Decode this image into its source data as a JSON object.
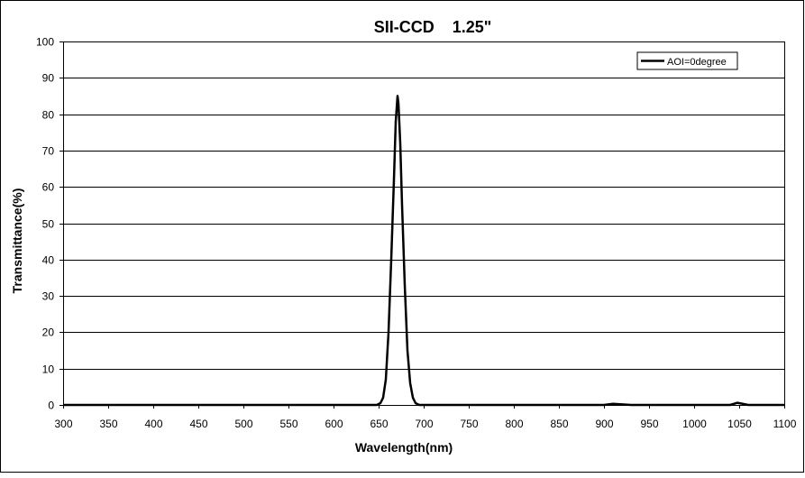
{
  "chart_data": {
    "type": "line",
    "title": "SII-CCD    1.25\"",
    "xlabel": "Wavelength(nm)",
    "ylabel": "Transmittance(%)",
    "xlim": [
      300,
      1100
    ],
    "ylim": [
      0,
      100
    ],
    "x_ticks": [
      "300",
      "350",
      "400",
      "450",
      "500",
      "550",
      "600",
      "650",
      "700",
      "750",
      "800",
      "850",
      "900",
      "950",
      "1000",
      "1050",
      "1100"
    ],
    "y_ticks": [
      "0",
      "10",
      "20",
      "30",
      "40",
      "50",
      "60",
      "70",
      "80",
      "90",
      "100"
    ],
    "grid": "horizontal",
    "legend_position": "top-right",
    "series": [
      {
        "name": "AOI=0degree",
        "color": "#000000",
        "x": [
          300,
          600,
          648,
          652,
          655,
          658,
          661,
          664,
          667,
          669,
          671,
          672,
          674,
          676,
          679,
          682,
          685,
          688,
          691,
          695,
          700,
          750,
          900,
          910,
          930,
          1040,
          1048,
          1052,
          1060,
          1100
        ],
        "y": [
          0,
          0,
          0,
          0.5,
          2,
          7,
          20,
          40,
          62,
          78,
          85,
          83,
          72,
          55,
          33,
          15,
          6,
          2,
          0.5,
          0,
          0,
          0,
          0,
          0.3,
          0,
          0,
          0.6,
          0.4,
          0,
          0
        ]
      }
    ]
  }
}
